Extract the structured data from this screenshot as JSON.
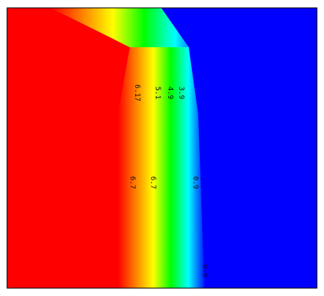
{
  "chart_data": {
    "type": "heatmap",
    "title": "",
    "xlabel": "",
    "ylabel": "",
    "colormap": [
      "#ff0000",
      "#ff8000",
      "#ffff00",
      "#00ff00",
      "#00ffff",
      "#0000ff"
    ],
    "frame_color": "#000000",
    "grid": false,
    "contour_labels": [
      {
        "text": "6.17",
        "band": "yellow"
      },
      {
        "text": "5.1",
        "band": "green"
      },
      {
        "text": "4.9",
        "band": "green"
      },
      {
        "text": "3.9",
        "band": "cyan"
      },
      {
        "text": "6.7",
        "band": "orange"
      },
      {
        "text": "6.7",
        "band": "yellow"
      },
      {
        "text": "0.9",
        "band": "cyan"
      },
      {
        "text": "0.0",
        "band": "blue"
      }
    ]
  }
}
